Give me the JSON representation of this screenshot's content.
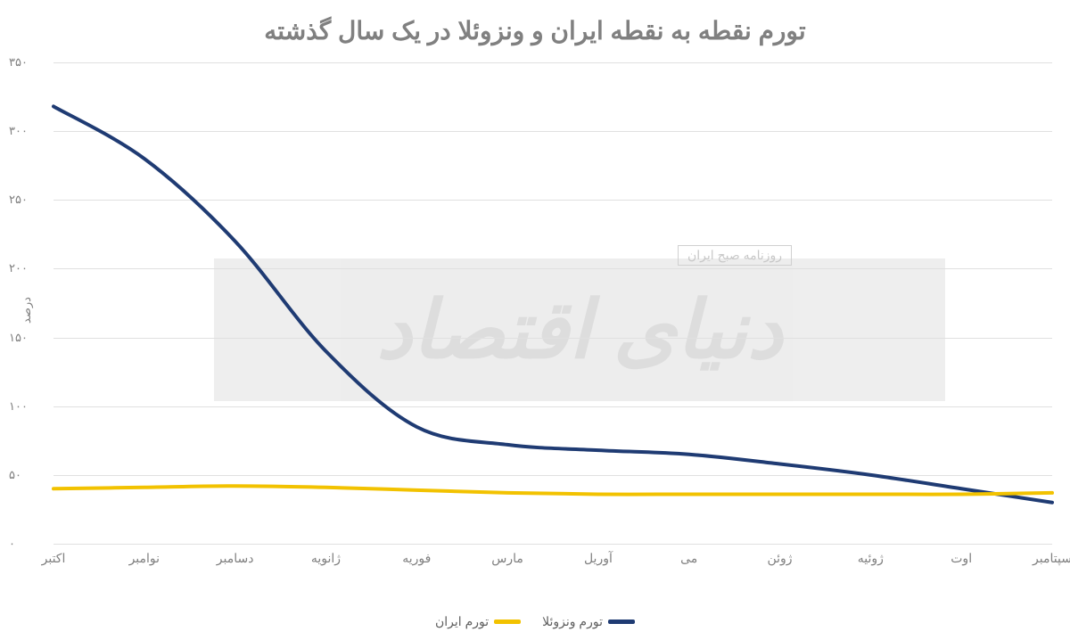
{
  "chart": {
    "type": "line",
    "title": "تورم نقطه به نقطه ایران و ونزوئلا در یک سال گذشته",
    "title_fontsize": 28,
    "title_color": "#808080",
    "ylabel": "درصد",
    "label_fontsize": 13,
    "background_color": "#ffffff",
    "grid_color": "#e0e0e0",
    "ylim": [
      0,
      350
    ],
    "ytick_step": 50,
    "yticks": [
      "۰",
      "۵۰",
      "۱۰۰",
      "۱۵۰",
      "۲۰۰",
      "۲۵۰",
      "۳۰۰",
      "۳۵۰"
    ],
    "categories": [
      "اکتبر",
      "نوامبر",
      "دسامبر",
      "ژانویه",
      "فوریه",
      "مارس",
      "آوریل",
      "می",
      "ژوئن",
      "ژوئیه",
      "اوت",
      "سپتامبر"
    ],
    "series": [
      {
        "name": "تورم ونزوئلا",
        "color": "#1f3b73",
        "line_width": 4,
        "values": [
          318,
          280,
          220,
          140,
          85,
          72,
          68,
          65,
          58,
          50,
          40,
          30
        ]
      },
      {
        "name": "تورم ایران",
        "color": "#f2c200",
        "line_width": 4,
        "values": [
          40,
          41,
          42,
          41,
          39,
          37,
          36,
          36,
          36,
          36,
          36,
          37
        ]
      }
    ],
    "watermark": {
      "text": "دنیای اقتصاد",
      "subtext": "روزنامه صبح ایران",
      "bg_color": "#ebebeb",
      "text_color": "#d8d8d8"
    },
    "legend": {
      "items": [
        {
          "label": "تورم ونزوئلا",
          "color": "#1f3b73"
        },
        {
          "label": "تورم ایران",
          "color": "#f2c200"
        }
      ]
    }
  }
}
